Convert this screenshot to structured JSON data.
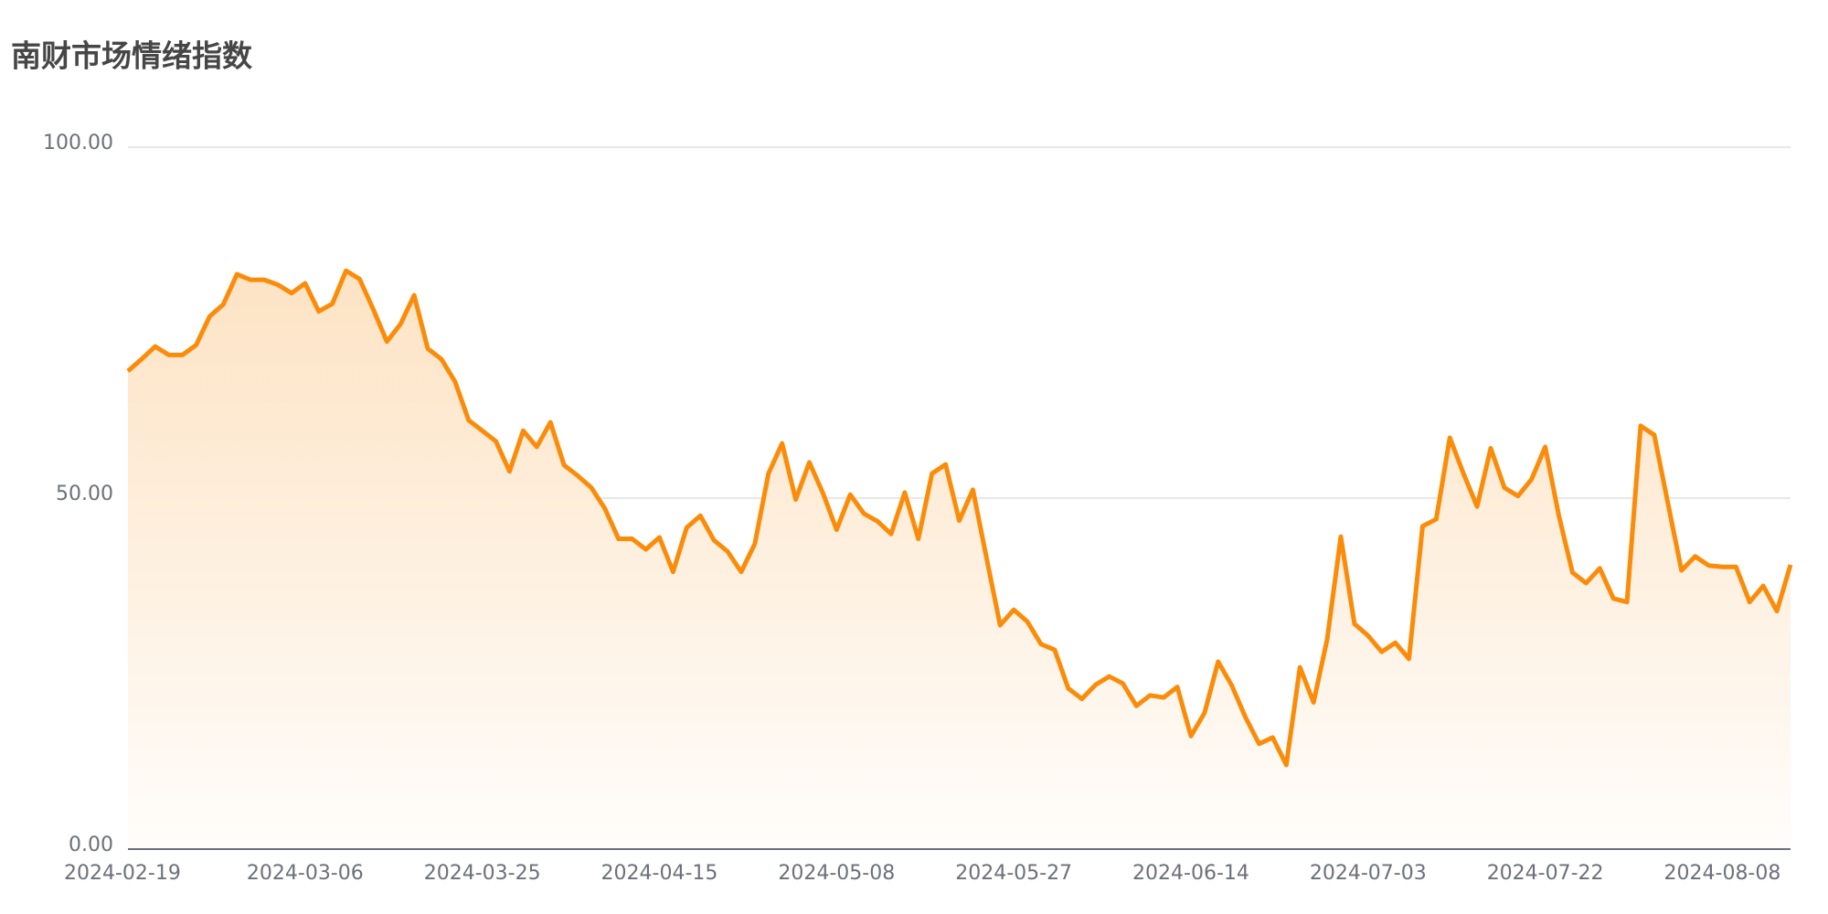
{
  "chart_data": {
    "type": "area",
    "title": "南财市场情绪指数",
    "categories": [
      "2024-02-19",
      null,
      null,
      null,
      null,
      null,
      null,
      null,
      null,
      null,
      null,
      null,
      null,
      "2024-03-06",
      null,
      null,
      null,
      null,
      null,
      null,
      null,
      null,
      null,
      null,
      null,
      null,
      "2024-03-25",
      null,
      null,
      null,
      null,
      null,
      null,
      null,
      null,
      null,
      null,
      null,
      null,
      "2024-04-15",
      null,
      null,
      null,
      null,
      null,
      null,
      null,
      null,
      null,
      null,
      null,
      null,
      "2024-05-08",
      null,
      null,
      null,
      null,
      null,
      null,
      null,
      null,
      null,
      null,
      null,
      null,
      "2024-05-27",
      null,
      null,
      null,
      null,
      null,
      null,
      null,
      null,
      null,
      null,
      null,
      null,
      "2024-06-14",
      null,
      null,
      null,
      null,
      null,
      null,
      null,
      null,
      null,
      null,
      null,
      null,
      "2024-07-03",
      null,
      null,
      null,
      null,
      null,
      null,
      null,
      null,
      null,
      null,
      null,
      null,
      "2024-07-22",
      null,
      null,
      null,
      null,
      null,
      null,
      null,
      null,
      null,
      null,
      null,
      null,
      "2024-08-08",
      null,
      null,
      null,
      null,
      null
    ],
    "values": [
      68.1,
      69.8,
      71.6,
      70.4,
      70.4,
      71.8,
      75.9,
      77.6,
      81.9,
      81.1,
      81.1,
      80.4,
      79.2,
      80.6,
      76.6,
      77.7,
      82.4,
      81.2,
      76.9,
      72.3,
      74.8,
      78.9,
      71.3,
      69.8,
      66.6,
      61.1,
      59.6,
      58.1,
      53.8,
      59.6,
      57.3,
      60.8,
      54.7,
      53.2,
      51.5,
      48.5,
      44.2,
      44.2,
      42.7,
      44.4,
      39.5,
      45.8,
      47.5,
      44.0,
      42.4,
      39.5,
      43.5,
      53.5,
      57.8,
      49.8,
      55.1,
      50.7,
      45.5,
      50.5,
      47.8,
      46.7,
      44.9,
      50.8,
      44.2,
      53.5,
      54.8,
      46.8,
      51.2,
      41.5,
      31.9,
      34.1,
      32.4,
      29.2,
      28.4,
      22.9,
      21.4,
      23.4,
      24.6,
      23.6,
      20.4,
      21.9,
      21.6,
      23.1,
      16.1,
      19.4,
      26.7,
      23.3,
      18.8,
      15.0,
      15.9,
      12.0,
      25.9,
      20.9,
      29.9,
      44.5,
      32.1,
      30.4,
      28.1,
      29.4,
      27.1,
      46.0,
      47.0,
      58.6,
      53.5,
      48.8,
      57.1,
      51.5,
      50.3,
      52.7,
      57.3,
      47.5,
      39.4,
      37.9,
      40.0,
      35.7,
      35.2,
      60.3,
      59.0,
      49.3,
      39.7,
      41.7,
      40.4,
      40.2,
      40.2,
      35.2,
      37.5,
      33.9,
      40.5
    ],
    "color": "#fb8c0a",
    "ylim": [
      0,
      100
    ],
    "yticks": [
      {
        "value": 0,
        "label": "0.00"
      },
      {
        "value": 50,
        "label": "50.00"
      },
      {
        "value": 100,
        "label": "100.00"
      }
    ],
    "grid": true
  }
}
